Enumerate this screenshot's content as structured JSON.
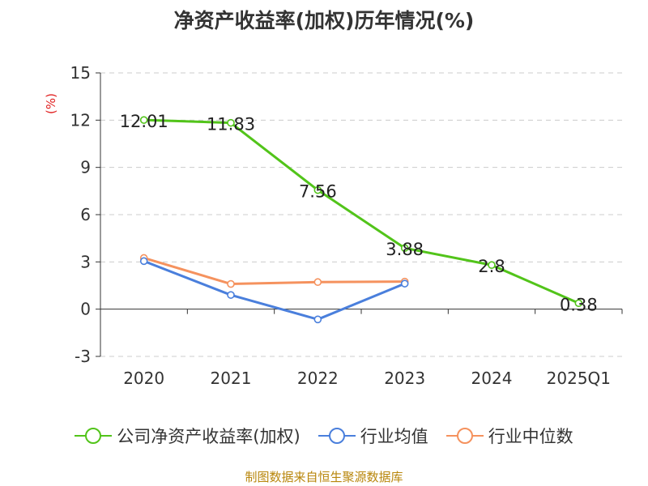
{
  "chart_data": {
    "type": "line",
    "title": "净资产收益率(加权)历年情况(%)",
    "ylabel": "(%)",
    "xlabel": "",
    "categories": [
      "2020",
      "2021",
      "2022",
      "2023",
      "2024",
      "2025Q1"
    ],
    "ylim": [
      -3,
      15
    ],
    "yticks": [
      -3,
      0,
      3,
      6,
      9,
      12,
      15
    ],
    "grid": true,
    "legend_position": "bottom",
    "series": [
      {
        "name": "公司净资产收益率(加权)",
        "color": "#52c41a",
        "values": [
          12.01,
          11.83,
          7.56,
          3.88,
          2.8,
          0.38
        ],
        "labels": [
          "12.01",
          "11.83",
          "7.56",
          "3.88",
          "2.8",
          "0.38"
        ]
      },
      {
        "name": "行业均值",
        "color": "#4a7fdc",
        "values": [
          3.05,
          0.9,
          -0.65,
          1.62,
          null,
          null
        ]
      },
      {
        "name": "行业中位数",
        "color": "#f5925e",
        "values": [
          3.25,
          1.6,
          1.72,
          1.75,
          null,
          null
        ]
      }
    ]
  },
  "footer": {
    "source": "制图数据来自恒生聚源数据库"
  }
}
